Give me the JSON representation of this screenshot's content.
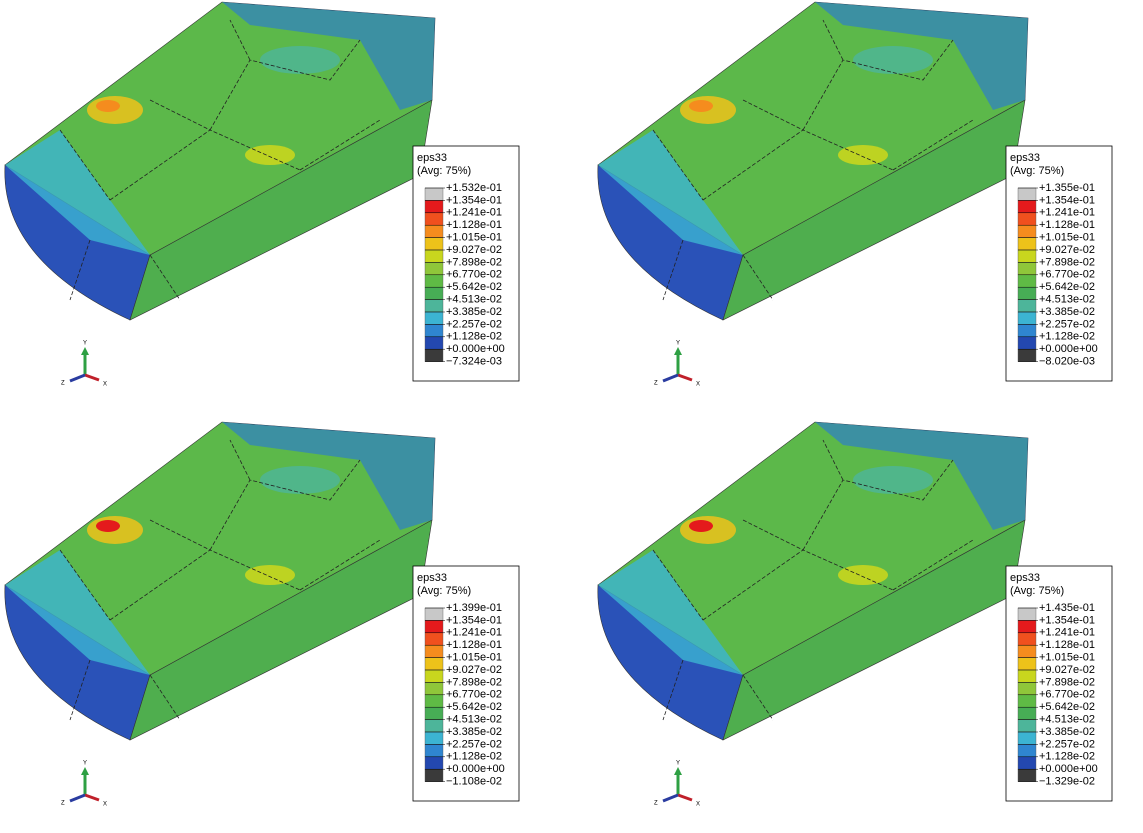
{
  "panels": [
    {
      "legend": {
        "title": "eps33",
        "subtitle": "(Avg: 75%)",
        "labels": [
          "+1.532e-01",
          "+1.354e-01",
          "+1.241e-01",
          "+1.128e-01",
          "+1.015e-01",
          "+9.027e-02",
          "+7.898e-02",
          "+6.770e-02",
          "+5.642e-02",
          "+4.513e-02",
          "+3.385e-02",
          "+2.257e-02",
          "+1.128e-02",
          "+0.000e+00",
          "−7.324e-03"
        ]
      },
      "triad": {
        "y": "Y",
        "z": "Z",
        "x": "X"
      }
    },
    {
      "legend": {
        "title": "eps33",
        "subtitle": "(Avg: 75%)",
        "labels": [
          "+1.355e-01",
          "+1.354e-01",
          "+1.241e-01",
          "+1.128e-01",
          "+1.015e-01",
          "+9.027e-02",
          "+7.898e-02",
          "+6.770e-02",
          "+5.642e-02",
          "+4.513e-02",
          "+3.385e-02",
          "+2.257e-02",
          "+1.128e-02",
          "+0.000e+00",
          "−8.020e-03"
        ]
      },
      "triad": {
        "y": "Y",
        "z": "Z",
        "x": "X"
      }
    },
    {
      "legend": {
        "title": "eps33",
        "subtitle": "(Avg: 75%)",
        "labels": [
          "+1.399e-01",
          "+1.354e-01",
          "+1.241e-01",
          "+1.128e-01",
          "+1.015e-01",
          "+9.027e-02",
          "+7.898e-02",
          "+6.770e-02",
          "+5.642e-02",
          "+4.513e-02",
          "+3.385e-02",
          "+2.257e-02",
          "+1.128e-02",
          "+0.000e+00",
          "−1.108e-02"
        ]
      },
      "triad": {
        "y": "Y",
        "z": "Z",
        "x": "X"
      }
    },
    {
      "legend": {
        "title": "eps33",
        "subtitle": "(Avg: 75%)",
        "labels": [
          "+1.435e-01",
          "+1.354e-01",
          "+1.241e-01",
          "+1.128e-01",
          "+1.015e-01",
          "+9.027e-02",
          "+7.898e-02",
          "+6.770e-02",
          "+5.642e-02",
          "+4.513e-02",
          "+3.385e-02",
          "+2.257e-02",
          "+1.128e-02",
          "+0.000e+00",
          "−1.329e-02"
        ]
      },
      "triad": {
        "y": "Y",
        "z": "Z",
        "x": "X"
      }
    }
  ]
}
